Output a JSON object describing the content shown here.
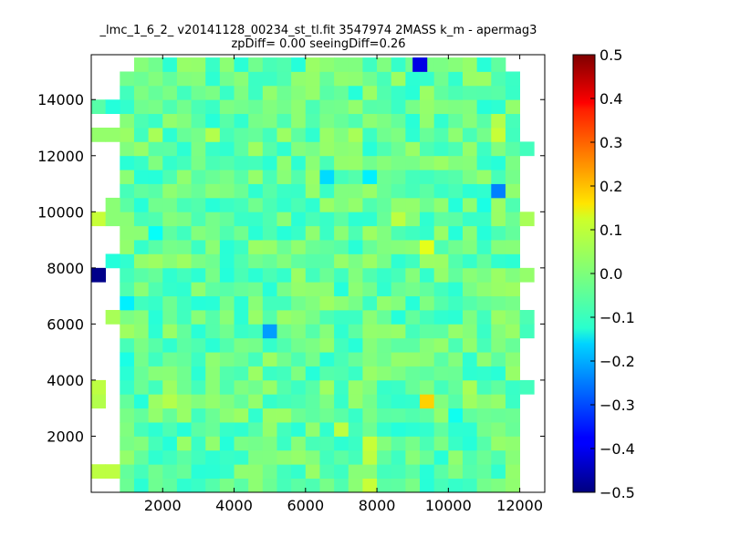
{
  "figure": {
    "title_line1": "_lmc_1_6_2_ v20141128_00234_st_tl.fit 3547974 2MASS k_m - apermag3",
    "title_line2": "zpDiff= 0.00 seeingDiff=0.26"
  },
  "chart_data": {
    "type": "heatmap",
    "title": "_lmc_1_6_2_ v20141128_00234_st_tl.fit 3547974 2MASS k_m - apermag3\nzpDiff= 0.00 seeingDiff=0.26",
    "xlabel": "",
    "ylabel": "",
    "xlim": [
      0,
      12700
    ],
    "ylim": [
      0,
      15600
    ],
    "x_ticks": [
      2000,
      4000,
      6000,
      8000,
      10000,
      12000
    ],
    "x_tick_labels": [
      "2000",
      "4000",
      "6000",
      "8000",
      "10000",
      "12000"
    ],
    "y_ticks": [
      2000,
      4000,
      6000,
      8000,
      10000,
      12000,
      14000
    ],
    "y_tick_labels": [
      "2000",
      "4000",
      "6000",
      "8000",
      "10000",
      "12000",
      "14000"
    ],
    "colormap": "jet",
    "color_range": [
      -0.5,
      0.5
    ],
    "colorbar_ticks": [
      -0.5,
      -0.4,
      -0.3,
      -0.2,
      -0.1,
      0.0,
      0.1,
      0.2,
      0.3,
      0.4,
      0.5
    ],
    "colorbar_tick_labels": [
      "−0.5",
      "−0.4",
      "−0.3",
      "−0.2",
      "−0.1",
      "0.0",
      "0.1",
      "0.2",
      "0.3",
      "0.4",
      "0.5"
    ],
    "grid": false,
    "cell_size": [
      400,
      500
    ],
    "x_origin": 0,
    "y_origin": 0,
    "cells": [
      {
        "x": 0,
        "y": 500,
        "v": 0.06
      },
      {
        "x": 400,
        "y": 500,
        "v": 0.06
      },
      {
        "x": 0,
        "y": 3000,
        "v": 0.05
      },
      {
        "x": 0,
        "y": 3500,
        "v": 0.06
      },
      {
        "x": 0,
        "y": 7500,
        "v": -0.49
      },
      {
        "x": 400,
        "y": 8000,
        "v": -0.09
      },
      {
        "x": 400,
        "y": 6000,
        "v": 0.04
      },
      {
        "x": 0,
        "y": 9500,
        "v": 0.07
      },
      {
        "x": 400,
        "y": 9500,
        "v": 0.01
      },
      {
        "x": 400,
        "y": 10000,
        "v": 0.01
      },
      {
        "x": 0,
        "y": 12500,
        "v": 0.02
      },
      {
        "x": 400,
        "y": 12500,
        "v": 0.02
      },
      {
        "x": 0,
        "y": 13500,
        "v": -0.04
      },
      {
        "x": 400,
        "y": 13500,
        "v": -0.09
      },
      {
        "x": 12000,
        "y": 12000,
        "v": -0.06
      },
      {
        "x": 12000,
        "y": 5500,
        "v": -0.06
      },
      {
        "x": 12000,
        "y": 6000,
        "v": -0.05
      },
      {
        "x": 12000,
        "y": 7500,
        "v": 0.02
      },
      {
        "x": 12000,
        "y": 9500,
        "v": 0.04
      },
      {
        "x": 11600,
        "y": 9500,
        "v": -0.02
      },
      {
        "x": 11600,
        "y": 3500,
        "v": -0.07
      },
      {
        "x": 12000,
        "y": 3500,
        "v": -0.06
      },
      {
        "x": 9000,
        "y": 15000,
        "v": -0.4
      },
      {
        "x": 6400,
        "y": 11000,
        "v": -0.16
      },
      {
        "x": 7600,
        "y": 11000,
        "v": -0.14
      },
      {
        "x": 11200,
        "y": 10500,
        "v": -0.25
      },
      {
        "x": 10800,
        "y": 10000,
        "v": -0.1
      },
      {
        "x": 10800,
        "y": 9500,
        "v": -0.07
      },
      {
        "x": 1600,
        "y": 9000,
        "v": -0.12
      },
      {
        "x": 9200,
        "y": 8500,
        "v": 0.1
      },
      {
        "x": 800,
        "y": 6500,
        "v": -0.14
      },
      {
        "x": 4800,
        "y": 5500,
        "v": -0.22
      },
      {
        "x": 800,
        "y": 4500,
        "v": -0.1
      },
      {
        "x": 9200,
        "y": 3000,
        "v": 0.17
      },
      {
        "x": 10000,
        "y": 2500,
        "v": -0.11
      },
      {
        "x": 8400,
        "y": 2000,
        "v": -0.09
      },
      {
        "x": 6400,
        "y": 10500,
        "v": -0.07
      },
      {
        "x": 5600,
        "y": 10500,
        "v": -0.07
      },
      {
        "x": 8400,
        "y": 9500,
        "v": 0.06
      },
      {
        "x": 8400,
        "y": 8000,
        "v": -0.08
      },
      {
        "x": 7200,
        "y": 9000,
        "v": -0.05
      },
      {
        "x": 11200,
        "y": 12500,
        "v": 0.07
      },
      {
        "x": 11200,
        "y": 13000,
        "v": 0.05
      },
      {
        "x": 11600,
        "y": 14000,
        "v": -0.07
      },
      {
        "x": 11200,
        "y": 14500,
        "v": -0.05
      },
      {
        "x": 1600,
        "y": 12500,
        "v": 0.04
      },
      {
        "x": 3200,
        "y": 12500,
        "v": 0.05
      },
      {
        "x": 800,
        "y": 14000,
        "v": -0.06
      },
      {
        "x": 2400,
        "y": 7500,
        "v": -0.06
      },
      {
        "x": 6000,
        "y": 7500,
        "v": -0.06
      },
      {
        "x": 9600,
        "y": 7000,
        "v": -0.06
      },
      {
        "x": 4400,
        "y": 5500,
        "v": -0.06
      },
      {
        "x": 4000,
        "y": 5500,
        "v": -0.07
      },
      {
        "x": 5200,
        "y": 4000,
        "v": -0.06
      },
      {
        "x": 6800,
        "y": 2000,
        "v": 0.06
      },
      {
        "x": 7600,
        "y": 1500,
        "v": 0.07
      },
      {
        "x": 7600,
        "y": 1000,
        "v": 0.06
      },
      {
        "x": 7600,
        "y": 0,
        "v": 0.07
      },
      {
        "x": 10400,
        "y": 3500,
        "v": 0.04
      },
      {
        "x": 2000,
        "y": 3000,
        "v": 0.05
      },
      {
        "x": 4400,
        "y": 12000,
        "v": 0.03
      },
      {
        "x": 7200,
        "y": 12500,
        "v": 0.04
      }
    ]
  }
}
